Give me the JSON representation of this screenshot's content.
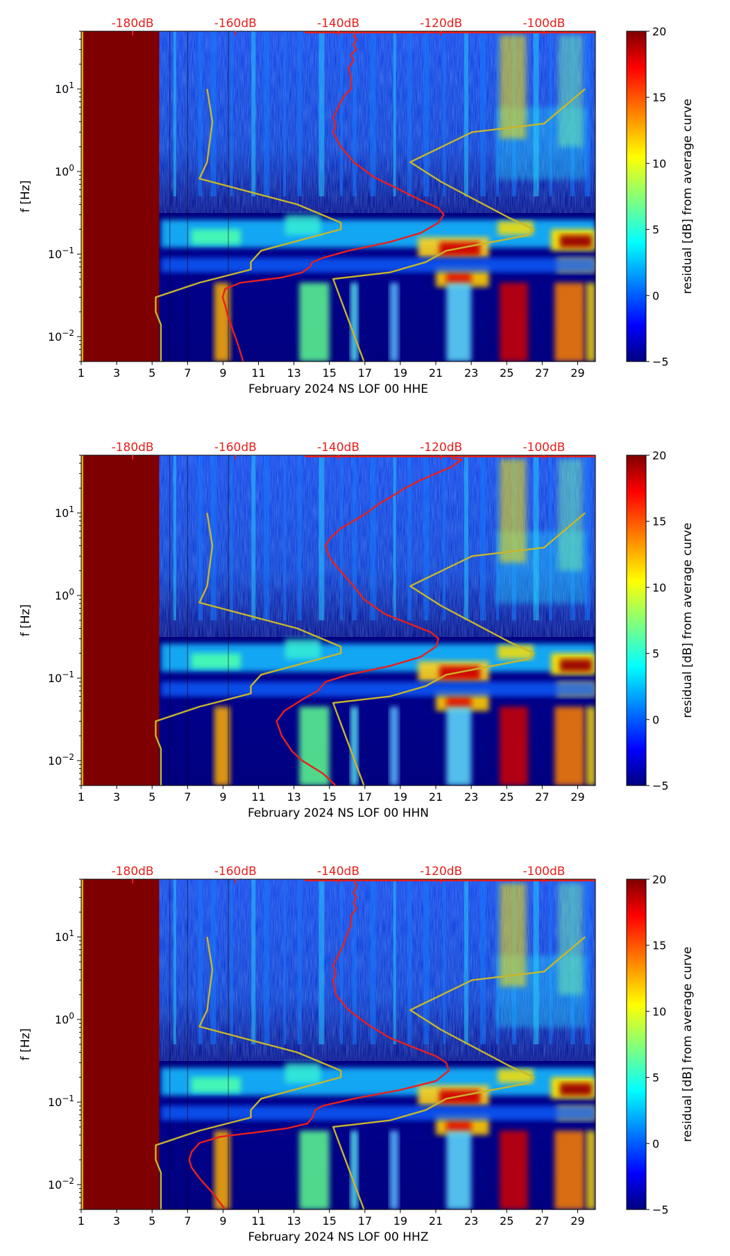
{
  "colors": {
    "curve_residual": "#e8201c",
    "curve_noise_model": "#c8b62a",
    "db_labels": "#e8201c",
    "background_saturated": "#7f0000",
    "colormap": [
      "#00007f",
      "#0000ff",
      "#007fff",
      "#00ffff",
      "#7fff7f",
      "#ffff00",
      "#ff7f00",
      "#ff0000",
      "#7f0000"
    ]
  },
  "chart_data": [
    {
      "type": "heatmap",
      "xlabel": "February 2024 NS LOF 00 HHE",
      "ylabel": "f [Hz]",
      "x_ticks": [
        "1",
        "3",
        "5",
        "7",
        "9",
        "11",
        "13",
        "15",
        "17",
        "19",
        "21",
        "23",
        "25",
        "27",
        "29"
      ],
      "xlim": [
        1,
        30
      ],
      "y_ticks": [
        {
          "value": 10,
          "label": "10",
          "exp": "1"
        },
        {
          "value": 1,
          "label": "10",
          "exp": "0"
        },
        {
          "value": 0.1,
          "label": "10",
          "exp": "−1"
        },
        {
          "value": 0.01,
          "label": "10",
          "exp": "−2"
        }
      ],
      "ylim": [
        0.005,
        50
      ],
      "y_scale": "log",
      "top_axis_labels": [
        "-180dB",
        "-160dB",
        "-140dB",
        "-120dB",
        "-100dB"
      ],
      "top_axis_values": [
        -180,
        -160,
        -140,
        -120,
        -100
      ],
      "colorbar": {
        "label": "residual [dB] from average curve",
        "ticks": [
          20,
          15,
          10,
          5,
          0,
          -5
        ],
        "range": [
          -5,
          20
        ]
      },
      "series": [
        {
          "points": [
            [
              -158.5,
              0.005
            ],
            [
              -159.5,
              0.008
            ],
            [
              -160.5,
              0.012
            ],
            [
              -161.5,
              0.018
            ],
            [
              -162,
              0.024
            ],
            [
              -162.5,
              0.03
            ],
            [
              -162,
              0.038
            ],
            [
              -159,
              0.045
            ],
            [
              -151,
              0.052
            ],
            [
              -147,
              0.06
            ],
            [
              -145.5,
              0.07
            ],
            [
              -145,
              0.08
            ],
            [
              -143,
              0.09
            ],
            [
              -138,
              0.11
            ],
            [
              -130,
              0.14
            ],
            [
              -124,
              0.18
            ],
            [
              -120.5,
              0.24
            ],
            [
              -119.5,
              0.3
            ],
            [
              -120.5,
              0.36
            ],
            [
              -124,
              0.45
            ],
            [
              -128,
              0.6
            ],
            [
              -133,
              0.85
            ],
            [
              -137,
              1.3
            ],
            [
              -139.5,
              2
            ],
            [
              -141,
              3
            ],
            [
              -140.5,
              3.6
            ],
            [
              -141,
              4.5
            ],
            [
              -140,
              6
            ],
            [
              -139,
              8
            ],
            [
              -137.5,
              10
            ],
            [
              -137.5,
              14
            ],
            [
              -138,
              18
            ],
            [
              -137,
              22
            ],
            [
              -137.5,
              26
            ],
            [
              -136.5,
              30
            ],
            [
              -137,
              34
            ],
            [
              -136.5,
              40
            ],
            [
              -137,
              44
            ],
            [
              -136.5,
              46
            ]
          ]
        },
        {
          "points": [
            [
              -174.5,
              0.005
            ],
            [
              -174.5,
              0.014
            ],
            [
              -175.5,
              0.02
            ],
            [
              -175.5,
              0.03
            ],
            [
              -167,
              0.045
            ],
            [
              -157,
              0.065
            ],
            [
              -157,
              0.08
            ],
            [
              -155,
              0.11
            ],
            [
              -139.5,
              0.2
            ],
            [
              -139.5,
              0.24
            ],
            [
              -148,
              0.4
            ],
            [
              -167,
              0.82
            ],
            [
              -165.5,
              1.3
            ],
            [
              -164.5,
              4
            ],
            [
              -165.5,
              10
            ]
          ]
        },
        {
          "points": [
            [
              -135,
              0.005
            ],
            [
              -141,
              0.05
            ],
            [
              -130,
              0.06
            ],
            [
              -123,
              0.08
            ],
            [
              -119,
              0.11
            ],
            [
              -103,
              0.17
            ],
            [
              -102,
              0.2
            ],
            [
              -107,
              0.28
            ],
            [
              -120,
              0.75
            ],
            [
              -126,
              1.3
            ],
            [
              -114,
              3
            ],
            [
              -100,
              3.8
            ],
            [
              -92,
              10
            ]
          ]
        }
      ]
    },
    {
      "type": "heatmap",
      "xlabel": "February 2024 NS LOF 00 HHN",
      "ylabel": "f [Hz]",
      "x_ticks": [
        "1",
        "3",
        "5",
        "7",
        "9",
        "11",
        "13",
        "15",
        "17",
        "19",
        "21",
        "23",
        "25",
        "27",
        "29"
      ],
      "xlim": [
        1,
        30
      ],
      "y_ticks": [
        {
          "value": 10,
          "label": "10",
          "exp": "1"
        },
        {
          "value": 1,
          "label": "10",
          "exp": "0"
        },
        {
          "value": 0.1,
          "label": "10",
          "exp": "−1"
        },
        {
          "value": 0.01,
          "label": "10",
          "exp": "−2"
        }
      ],
      "ylim": [
        0.005,
        50
      ],
      "y_scale": "log",
      "top_axis_labels": [
        "-180dB",
        "-160dB",
        "-140dB",
        "-120dB",
        "-100dB"
      ],
      "top_axis_values": [
        -180,
        -160,
        -140,
        -120,
        -100
      ],
      "colorbar": {
        "label": "residual [dB] from average curve",
        "ticks": [
          20,
          15,
          10,
          5,
          0,
          -5
        ],
        "range": [
          -5,
          20
        ]
      },
      "series": [
        {
          "points": [
            [
              -140.5,
              0.005
            ],
            [
              -143,
              0.007
            ],
            [
              -147,
              0.01
            ],
            [
              -149,
              0.013
            ],
            [
              -151,
              0.02
            ],
            [
              -152,
              0.03
            ],
            [
              -150.5,
              0.04
            ],
            [
              -147,
              0.055
            ],
            [
              -144,
              0.07
            ],
            [
              -142.5,
              0.09
            ],
            [
              -138,
              0.11
            ],
            [
              -130,
              0.14
            ],
            [
              -124,
              0.18
            ],
            [
              -121,
              0.24
            ],
            [
              -120.5,
              0.3
            ],
            [
              -122,
              0.36
            ],
            [
              -126,
              0.45
            ],
            [
              -131,
              0.6
            ],
            [
              -135,
              0.9
            ],
            [
              -137,
              1.3
            ],
            [
              -139,
              1.8
            ],
            [
              -141,
              2.5
            ],
            [
              -142,
              3.2
            ],
            [
              -142.5,
              4
            ],
            [
              -141.5,
              5
            ],
            [
              -139.5,
              6.5
            ],
            [
              -137,
              8
            ],
            [
              -134.5,
              10
            ],
            [
              -132,
              13
            ],
            [
              -129.5,
              16
            ],
            [
              -127,
              20
            ],
            [
              -124,
              25
            ],
            [
              -121,
              30
            ],
            [
              -118,
              36
            ],
            [
              -117,
              40
            ],
            [
              -116,
              44
            ],
            [
              -118,
              46
            ]
          ]
        },
        {
          "points": [
            [
              -174.5,
              0.005
            ],
            [
              -174.5,
              0.014
            ],
            [
              -175.5,
              0.02
            ],
            [
              -175.5,
              0.03
            ],
            [
              -167,
              0.045
            ],
            [
              -157,
              0.065
            ],
            [
              -157,
              0.08
            ],
            [
              -155,
              0.11
            ],
            [
              -139.5,
              0.2
            ],
            [
              -139.5,
              0.24
            ],
            [
              -148,
              0.4
            ],
            [
              -167,
              0.82
            ],
            [
              -165.5,
              1.3
            ],
            [
              -164.5,
              4
            ],
            [
              -165.5,
              10
            ]
          ]
        },
        {
          "points": [
            [
              -135,
              0.005
            ],
            [
              -141,
              0.05
            ],
            [
              -130,
              0.06
            ],
            [
              -123,
              0.08
            ],
            [
              -119,
              0.11
            ],
            [
              -103,
              0.17
            ],
            [
              -102,
              0.2
            ],
            [
              -107,
              0.28
            ],
            [
              -120,
              0.75
            ],
            [
              -126,
              1.3
            ],
            [
              -114,
              3
            ],
            [
              -100,
              3.8
            ],
            [
              -92,
              10
            ]
          ]
        }
      ]
    },
    {
      "type": "heatmap",
      "xlabel": "February 2024 NS LOF 00 HHZ",
      "ylabel": "f [Hz]",
      "x_ticks": [
        "1",
        "3",
        "5",
        "7",
        "9",
        "11",
        "13",
        "15",
        "17",
        "19",
        "21",
        "23",
        "25",
        "27",
        "29"
      ],
      "xlim": [
        1,
        30
      ],
      "y_ticks": [
        {
          "value": 10,
          "label": "10",
          "exp": "1"
        },
        {
          "value": 1,
          "label": "10",
          "exp": "0"
        },
        {
          "value": 0.1,
          "label": "10",
          "exp": "−1"
        },
        {
          "value": 0.01,
          "label": "10",
          "exp": "−2"
        }
      ],
      "ylim": [
        0.005,
        50
      ],
      "y_scale": "log",
      "top_axis_labels": [
        "-180dB",
        "-160dB",
        "-140dB",
        "-120dB",
        "-100dB"
      ],
      "top_axis_values": [
        -180,
        -160,
        -140,
        -120,
        -100
      ],
      "colorbar": {
        "label": "residual [dB] from average curve",
        "ticks": [
          20,
          15,
          10,
          5,
          0,
          -5
        ],
        "range": [
          -5,
          20
        ]
      },
      "series": [
        {
          "points": [
            [
              -162,
              0.005
            ],
            [
              -164.5,
              0.008
            ],
            [
              -167,
              0.012
            ],
            [
              -168.5,
              0.016
            ],
            [
              -169,
              0.02
            ],
            [
              -168.5,
              0.025
            ],
            [
              -167,
              0.032
            ],
            [
              -163,
              0.038
            ],
            [
              -156,
              0.043
            ],
            [
              -150,
              0.048
            ],
            [
              -146,
              0.055
            ],
            [
              -145,
              0.065
            ],
            [
              -144.5,
              0.08
            ],
            [
              -143,
              0.09
            ],
            [
              -137,
              0.11
            ],
            [
              -128,
              0.14
            ],
            [
              -121,
              0.18
            ],
            [
              -118.5,
              0.24
            ],
            [
              -119,
              0.3
            ],
            [
              -121,
              0.36
            ],
            [
              -125,
              0.45
            ],
            [
              -130,
              0.6
            ],
            [
              -134,
              0.85
            ],
            [
              -138,
              1.3
            ],
            [
              -140.5,
              2
            ],
            [
              -141,
              3
            ],
            [
              -140.5,
              3.6
            ],
            [
              -141,
              4.5
            ],
            [
              -140,
              6
            ],
            [
              -139,
              8
            ],
            [
              -138.5,
              10
            ],
            [
              -137.5,
              14
            ],
            [
              -137.5,
              18
            ],
            [
              -136.5,
              22
            ],
            [
              -137,
              26
            ],
            [
              -136.5,
              30
            ],
            [
              -137,
              34
            ],
            [
              -136.5,
              40
            ],
            [
              -136.5,
              44
            ],
            [
              -137,
              46
            ]
          ]
        },
        {
          "points": [
            [
              -174.5,
              0.005
            ],
            [
              -174.5,
              0.014
            ],
            [
              -175.5,
              0.02
            ],
            [
              -175.5,
              0.03
            ],
            [
              -167,
              0.045
            ],
            [
              -157,
              0.065
            ],
            [
              -157,
              0.08
            ],
            [
              -155,
              0.11
            ],
            [
              -139.5,
              0.2
            ],
            [
              -139.5,
              0.24
            ],
            [
              -148,
              0.4
            ],
            [
              -167,
              0.82
            ],
            [
              -165.5,
              1.3
            ],
            [
              -164.5,
              4
            ],
            [
              -165.5,
              10
            ]
          ]
        },
        {
          "points": [
            [
              -135,
              0.005
            ],
            [
              -141,
              0.05
            ],
            [
              -130,
              0.06
            ],
            [
              -123,
              0.08
            ],
            [
              -119,
              0.11
            ],
            [
              -103,
              0.17
            ],
            [
              -102,
              0.2
            ],
            [
              -107,
              0.28
            ],
            [
              -120,
              0.75
            ],
            [
              -126,
              1.3
            ],
            [
              -114,
              3
            ],
            [
              -100,
              3.8
            ],
            [
              -92,
              10
            ]
          ]
        }
      ]
    }
  ]
}
